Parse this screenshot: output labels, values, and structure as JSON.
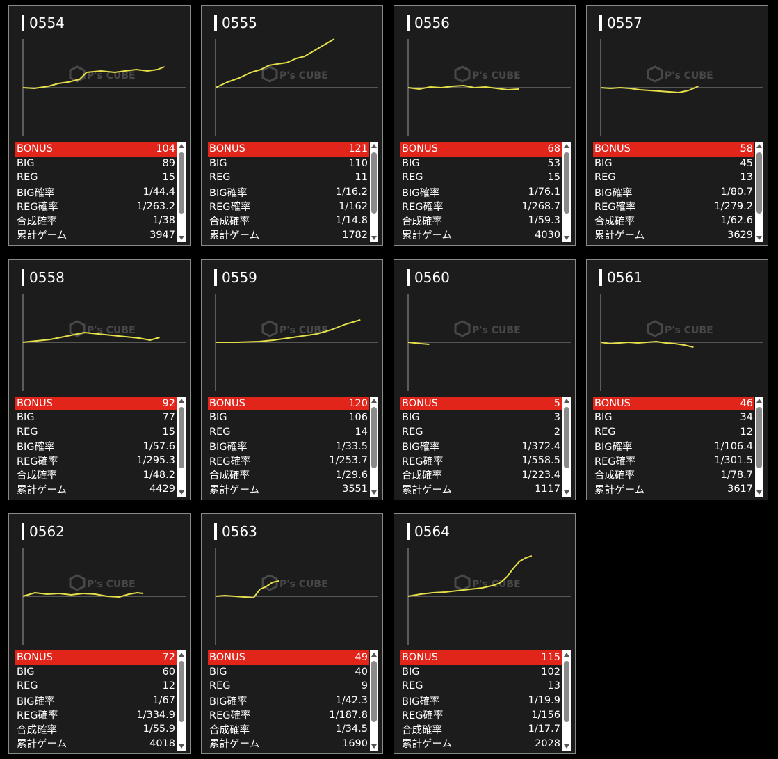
{
  "colors": {
    "line": "#e5df4a",
    "bonus_bg": "#e1251b",
    "card_bg": "#1c1c1c"
  },
  "labels": {
    "bonus": "BONUS",
    "big": "BIG",
    "reg": "REG",
    "big_rate": "BIG確率",
    "reg_rate": "REG確率",
    "total_rate": "合成確率",
    "games": "累計ゲーム"
  },
  "watermark": {
    "brand": "P's CUBE",
    "icon": "cube-logo-icon"
  },
  "machines": [
    {
      "id": "0554",
      "bonus": "104",
      "big": "89",
      "reg": "15",
      "big_rate": "1/44.4",
      "reg_rate": "1/263.2",
      "total_rate": "1/38",
      "games": "3947",
      "graph": [
        [
          0,
          0
        ],
        [
          0.08,
          -1
        ],
        [
          0.18,
          2
        ],
        [
          0.25,
          6
        ],
        [
          0.32,
          8
        ],
        [
          0.4,
          12
        ],
        [
          0.45,
          22
        ],
        [
          0.55,
          24
        ],
        [
          0.65,
          22
        ],
        [
          0.72,
          24
        ],
        [
          0.8,
          26
        ],
        [
          0.88,
          24
        ],
        [
          0.95,
          26
        ],
        [
          1.0,
          30
        ]
      ],
      "end": 0.87
    },
    {
      "id": "0555",
      "bonus": "121",
      "big": "110",
      "reg": "11",
      "big_rate": "1/16.2",
      "reg_rate": "1/162",
      "total_rate": "1/14.8",
      "games": "1782",
      "graph": [
        [
          0,
          0
        ],
        [
          0.1,
          8
        ],
        [
          0.2,
          14
        ],
        [
          0.3,
          22
        ],
        [
          0.38,
          26
        ],
        [
          0.45,
          32
        ],
        [
          0.52,
          34
        ],
        [
          0.6,
          36
        ],
        [
          0.68,
          42
        ],
        [
          0.75,
          45
        ],
        [
          0.82,
          52
        ],
        [
          0.9,
          60
        ],
        [
          1.0,
          70
        ]
      ],
      "end": 0.73
    },
    {
      "id": "0556",
      "bonus": "68",
      "big": "53",
      "reg": "15",
      "big_rate": "1/76.1",
      "reg_rate": "1/268.7",
      "total_rate": "1/59.3",
      "games": "4030",
      "graph": [
        [
          0,
          0
        ],
        [
          0.1,
          -2
        ],
        [
          0.2,
          1
        ],
        [
          0.3,
          0
        ],
        [
          0.4,
          2
        ],
        [
          0.5,
          3
        ],
        [
          0.6,
          0
        ],
        [
          0.7,
          1
        ],
        [
          0.8,
          -1
        ],
        [
          0.9,
          -3
        ],
        [
          1.0,
          -2
        ]
      ],
      "end": 0.68
    },
    {
      "id": "0557",
      "bonus": "58",
      "big": "45",
      "reg": "13",
      "big_rate": "1/80.7",
      "reg_rate": "1/279.2",
      "total_rate": "1/62.6",
      "games": "3629",
      "graph": [
        [
          0,
          0
        ],
        [
          0.1,
          -1
        ],
        [
          0.2,
          0
        ],
        [
          0.3,
          -1
        ],
        [
          0.4,
          -3
        ],
        [
          0.5,
          -4
        ],
        [
          0.6,
          -5
        ],
        [
          0.7,
          -6
        ],
        [
          0.8,
          -7
        ],
        [
          0.9,
          -4
        ],
        [
          1.0,
          2
        ]
      ],
      "end": 0.6
    },
    {
      "id": "0558",
      "bonus": "92",
      "big": "77",
      "reg": "15",
      "big_rate": "1/57.6",
      "reg_rate": "1/295.3",
      "total_rate": "1/48.2",
      "games": "4429",
      "graph": [
        [
          0,
          0
        ],
        [
          0.1,
          2
        ],
        [
          0.2,
          4
        ],
        [
          0.3,
          8
        ],
        [
          0.4,
          12
        ],
        [
          0.45,
          14
        ],
        [
          0.55,
          12
        ],
        [
          0.65,
          10
        ],
        [
          0.75,
          8
        ],
        [
          0.85,
          6
        ],
        [
          0.93,
          3
        ],
        [
          1.0,
          7
        ]
      ],
      "end": 0.84
    },
    {
      "id": "0559",
      "bonus": "120",
      "big": "106",
      "reg": "14",
      "big_rate": "1/33.5",
      "reg_rate": "1/253.7",
      "total_rate": "1/29.6",
      "games": "3551",
      "graph": [
        [
          0,
          0
        ],
        [
          0.15,
          0
        ],
        [
          0.3,
          1
        ],
        [
          0.4,
          3
        ],
        [
          0.5,
          6
        ],
        [
          0.6,
          9
        ],
        [
          0.7,
          12
        ],
        [
          0.8,
          18
        ],
        [
          0.9,
          26
        ],
        [
          1.0,
          32
        ]
      ],
      "end": 0.89
    },
    {
      "id": "0560",
      "bonus": "5",
      "big": "3",
      "reg": "2",
      "big_rate": "1/372.4",
      "reg_rate": "1/558.5",
      "total_rate": "1/223.4",
      "games": "1117",
      "graph": [
        [
          0,
          0
        ],
        [
          0.3,
          -1
        ],
        [
          0.6,
          -2
        ],
        [
          1.0,
          -3
        ]
      ],
      "end": 0.13
    },
    {
      "id": "0561",
      "bonus": "46",
      "big": "34",
      "reg": "12",
      "big_rate": "1/106.4",
      "reg_rate": "1/301.5",
      "total_rate": "1/78.7",
      "games": "3617",
      "graph": [
        [
          0,
          0
        ],
        [
          0.1,
          -2
        ],
        [
          0.2,
          -1
        ],
        [
          0.3,
          0
        ],
        [
          0.4,
          -1
        ],
        [
          0.5,
          0
        ],
        [
          0.6,
          1
        ],
        [
          0.7,
          -1
        ],
        [
          0.8,
          -2
        ],
        [
          0.9,
          -4
        ],
        [
          1.0,
          -7
        ]
      ],
      "end": 0.57
    },
    {
      "id": "0562",
      "bonus": "72",
      "big": "60",
      "reg": "12",
      "big_rate": "1/67",
      "reg_rate": "1/334.9",
      "total_rate": "1/55.9",
      "games": "4018",
      "graph": [
        [
          0,
          0
        ],
        [
          0.1,
          5
        ],
        [
          0.2,
          3
        ],
        [
          0.3,
          4
        ],
        [
          0.4,
          2
        ],
        [
          0.5,
          4
        ],
        [
          0.6,
          3
        ],
        [
          0.7,
          0
        ],
        [
          0.8,
          -1
        ],
        [
          0.88,
          3
        ],
        [
          0.95,
          5
        ],
        [
          1.0,
          4
        ]
      ],
      "end": 0.74
    },
    {
      "id": "0563",
      "bonus": "49",
      "big": "40",
      "reg": "9",
      "big_rate": "1/42.3",
      "reg_rate": "1/187.8",
      "total_rate": "1/34.5",
      "games": "1690",
      "graph": [
        [
          0,
          0
        ],
        [
          0.15,
          1
        ],
        [
          0.3,
          0
        ],
        [
          0.45,
          -1
        ],
        [
          0.6,
          -2
        ],
        [
          0.7,
          10
        ],
        [
          0.8,
          14
        ],
        [
          0.9,
          20
        ],
        [
          1.0,
          22
        ]
      ],
      "end": 0.39
    },
    {
      "id": "0564",
      "bonus": "115",
      "big": "102",
      "reg": "13",
      "big_rate": "1/19.9",
      "reg_rate": "1/156",
      "total_rate": "1/17.7",
      "games": "2028",
      "graph": [
        [
          0,
          0
        ],
        [
          0.1,
          3
        ],
        [
          0.2,
          5
        ],
        [
          0.3,
          6
        ],
        [
          0.4,
          8
        ],
        [
          0.5,
          10
        ],
        [
          0.6,
          12
        ],
        [
          0.65,
          14
        ],
        [
          0.7,
          16
        ],
        [
          0.75,
          20
        ],
        [
          0.8,
          28
        ],
        [
          0.85,
          40
        ],
        [
          0.9,
          50
        ],
        [
          0.95,
          55
        ],
        [
          1.0,
          58
        ]
      ],
      "end": 0.76
    }
  ]
}
